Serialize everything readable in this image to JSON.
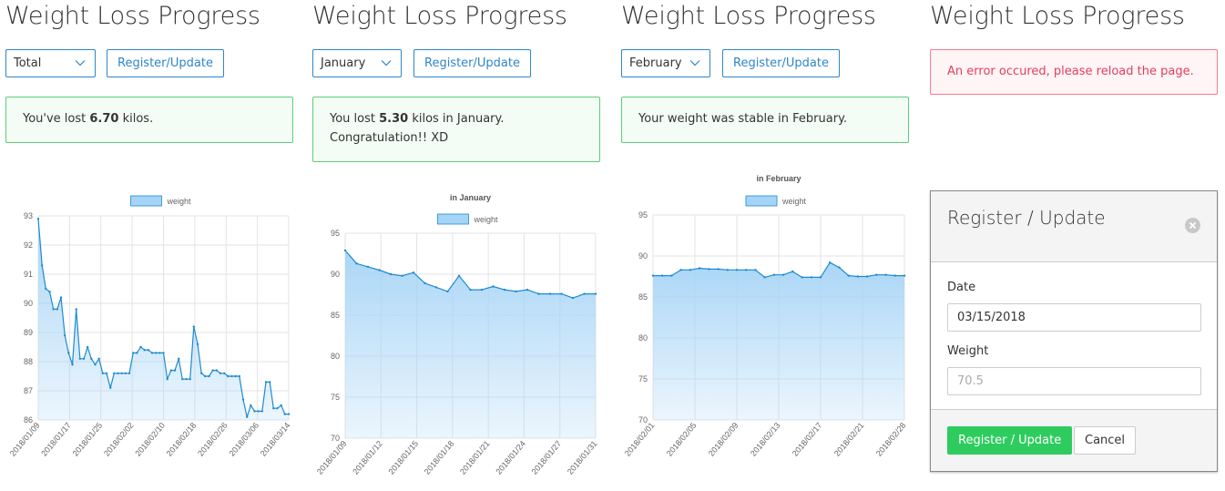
{
  "panels": [
    {
      "title": "Weight Loss Progress",
      "select_value": "Total",
      "button_label": "Register/Update",
      "message": {
        "prefix": "You've lost ",
        "bold": "6.70",
        "suffix": " kilos."
      }
    },
    {
      "title": "Weight Loss Progress",
      "select_value": "January",
      "button_label": "Register/Update",
      "message": {
        "prefix": "You lost ",
        "bold": "5.30",
        "suffix": " kilos in January.",
        "line2": "Congratulation!! XD"
      }
    },
    {
      "title": "Weight Loss Progress",
      "select_value": "February",
      "button_label": "Register/Update",
      "message": {
        "prefix": "Your weight was stable in February.",
        "bold": "",
        "suffix": ""
      }
    },
    {
      "title": "Weight Loss Progress",
      "error": "An error occured, please reload the page."
    }
  ],
  "colors": {
    "accent": "#2e86c9",
    "success_border": "#5ccd7b",
    "danger_text": "#e0405e",
    "line": "#1d8bd1",
    "fill": "#a6d4f6",
    "primary_button": "#2ecc5f"
  },
  "chart_data": [
    {
      "type": "area",
      "title": "",
      "legend": {
        "label": "weight",
        "position": "top"
      },
      "ylim": [
        86,
        93
      ],
      "yticks": [
        86,
        87,
        88,
        89,
        90,
        91,
        92,
        93
      ],
      "xticks": [
        "2018/01/09",
        "2018/01/17",
        "2018/01/25",
        "2018/02/02",
        "2018/02/10",
        "2018/02/18",
        "2018/02/26",
        "2018/03/06",
        "2018/03/14"
      ],
      "grid": true,
      "series": [
        {
          "name": "weight",
          "x_days": [
            0,
            1,
            2,
            3,
            4,
            5,
            6,
            7,
            8,
            9,
            10,
            11,
            12,
            13,
            14,
            15,
            16,
            17,
            18,
            19,
            20,
            21,
            22,
            23,
            24,
            25,
            26,
            27,
            28,
            29,
            30,
            31,
            32,
            33,
            34,
            35,
            36,
            37,
            38,
            39,
            40,
            41,
            42,
            43,
            44,
            45,
            46,
            47,
            48,
            49,
            50,
            51,
            52,
            53,
            54,
            55,
            56,
            57,
            58,
            59,
            60,
            61,
            62,
            63,
            64,
            65,
            66
          ],
          "values": [
            92.9,
            91.3,
            90.5,
            90.4,
            89.8,
            89.8,
            90.2,
            88.9,
            88.3,
            87.9,
            89.8,
            88.1,
            88.1,
            88.5,
            88.1,
            87.9,
            88.1,
            87.6,
            87.6,
            87.1,
            87.6,
            87.6,
            87.6,
            87.6,
            87.6,
            88.3,
            88.3,
            88.5,
            88.4,
            88.4,
            88.3,
            88.3,
            88.3,
            88.3,
            87.4,
            87.7,
            87.7,
            88.1,
            87.4,
            87.4,
            87.4,
            89.2,
            88.6,
            87.6,
            87.5,
            87.5,
            87.7,
            87.7,
            87.6,
            87.6,
            87.5,
            87.5,
            87.5,
            87.5,
            86.7,
            86.1,
            86.5,
            86.3,
            86.3,
            86.3,
            87.3,
            87.3,
            86.4,
            86.4,
            86.5,
            86.2,
            86.2
          ]
        }
      ]
    },
    {
      "type": "area",
      "title": "in January",
      "legend": {
        "label": "weight",
        "position": "top"
      },
      "ylim": [
        70,
        95
      ],
      "yticks": [
        70,
        75,
        80,
        85,
        90,
        95
      ],
      "xticks": [
        "2018/01/09",
        "2018/01/12",
        "2018/01/15",
        "2018/01/18",
        "2018/01/21",
        "2018/01/24",
        "2018/01/27",
        "2018/01/31"
      ],
      "grid": true,
      "series": [
        {
          "name": "weight",
          "x_days": [
            0,
            1,
            2,
            3,
            4,
            5,
            6,
            7,
            8,
            9,
            10,
            11,
            12,
            13,
            14,
            15,
            16,
            17,
            18,
            19,
            20,
            21,
            22
          ],
          "values": [
            92.9,
            91.3,
            90.9,
            90.5,
            90.0,
            89.8,
            90.2,
            88.9,
            88.4,
            87.9,
            89.8,
            88.1,
            88.1,
            88.5,
            88.1,
            87.9,
            88.1,
            87.6,
            87.6,
            87.6,
            87.1,
            87.6,
            87.6
          ]
        }
      ]
    },
    {
      "type": "area",
      "title": "in February",
      "legend": {
        "label": "weight",
        "position": "top"
      },
      "ylim": [
        70,
        95
      ],
      "yticks": [
        70,
        75,
        80,
        85,
        90,
        95
      ],
      "xticks": [
        "2018/02/01",
        "2018/02/05",
        "2018/02/09",
        "2018/02/13",
        "2018/02/17",
        "2018/02/21",
        "2018/02/28"
      ],
      "grid": true,
      "series": [
        {
          "name": "weight",
          "x_days": [
            0,
            1,
            2,
            3,
            4,
            5,
            6,
            7,
            8,
            9,
            10,
            11,
            12,
            13,
            14,
            15,
            16,
            17,
            18,
            19,
            20,
            21,
            22,
            23,
            24,
            25,
            26,
            27
          ],
          "values": [
            87.6,
            87.6,
            87.6,
            88.3,
            88.3,
            88.5,
            88.4,
            88.4,
            88.3,
            88.3,
            88.3,
            88.3,
            87.4,
            87.7,
            87.7,
            88.1,
            87.4,
            87.4,
            87.4,
            89.2,
            88.6,
            87.6,
            87.5,
            87.5,
            87.7,
            87.7,
            87.6,
            87.6
          ]
        }
      ]
    }
  ],
  "modal": {
    "title": "Register / Update",
    "date_label": "Date",
    "date_value": "03/15/2018",
    "weight_label": "Weight",
    "weight_placeholder": "70.5",
    "submit_label": "Register / Update",
    "cancel_label": "Cancel"
  }
}
